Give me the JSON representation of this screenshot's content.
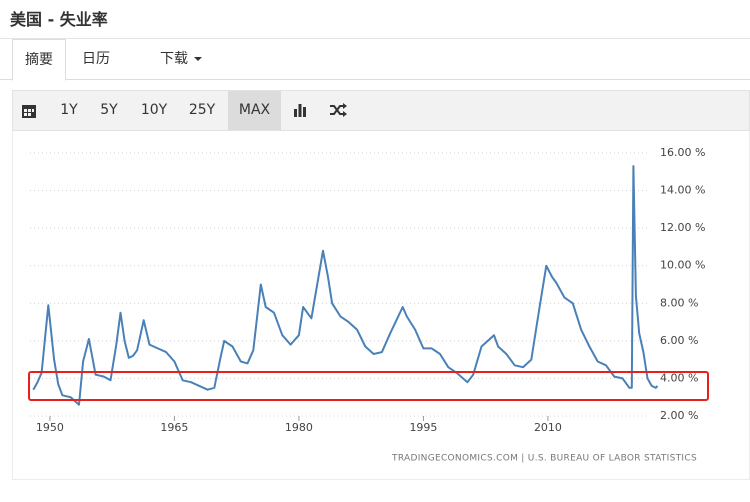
{
  "header": {
    "title": "美国 - 失业率"
  },
  "tabs": [
    "摘要",
    "日历",
    "下载"
  ],
  "toolbar": [
    "1Y",
    "5Y",
    "10Y",
    "25Y",
    "MAX"
  ],
  "chart_data": {
    "type": "line",
    "source": "TRADINGECONOMICS.COM  |  U.S. BUREAU OF LABOR STATISTICS",
    "color": "#4a80b8",
    "grid": true,
    "x": [
      1948.0,
      1948.5,
      1949.0,
      1949.8,
      1950.5,
      1951.0,
      1951.5,
      1952.5,
      1953.5,
      1954.0,
      1954.7,
      1955.5,
      1956.5,
      1957.3,
      1958.0,
      1958.5,
      1959.0,
      1959.5,
      1960.0,
      1960.5,
      1961.3,
      1962.0,
      1963.0,
      1964.0,
      1965.0,
      1966.0,
      1967.0,
      1968.0,
      1969.0,
      1969.8,
      1970.5,
      1971.0,
      1972.0,
      1973.0,
      1973.8,
      1974.5,
      1975.4,
      1976.0,
      1977.0,
      1978.0,
      1979.0,
      1980.0,
      1980.5,
      1981.5,
      1982.9,
      1983.5,
      1984.0,
      1985.0,
      1986.0,
      1987.0,
      1988.0,
      1989.0,
      1990.0,
      1991.0,
      1992.5,
      1993.0,
      1994.0,
      1995.0,
      1996.0,
      1997.0,
      1998.0,
      1999.0,
      2000.3,
      2001.0,
      2002.0,
      2003.5,
      2004.0,
      2005.0,
      2006.0,
      2007.0,
      2008.0,
      2009.0,
      2009.8,
      2010.5,
      2011.0,
      2012.0,
      2013.0,
      2014.0,
      2015.0,
      2016.0,
      2017.0,
      2018.0,
      2019.0,
      2019.8,
      2020.1,
      2020.3,
      2020.6,
      2021.0,
      2021.5,
      2022.0,
      2022.5,
      2023.0,
      2023.2
    ],
    "values": [
      3.4,
      3.8,
      4.3,
      7.9,
      5.0,
      3.7,
      3.1,
      3.0,
      2.6,
      4.9,
      6.1,
      4.2,
      4.1,
      3.9,
      5.8,
      7.5,
      6.0,
      5.1,
      5.2,
      5.5,
      7.1,
      5.8,
      5.6,
      5.4,
      4.9,
      3.9,
      3.8,
      3.6,
      3.4,
      3.5,
      5.0,
      6.0,
      5.7,
      4.9,
      4.8,
      5.5,
      9.0,
      7.8,
      7.5,
      6.3,
      5.8,
      6.3,
      7.8,
      7.2,
      10.8,
      9.4,
      8.0,
      7.3,
      7.0,
      6.6,
      5.7,
      5.3,
      5.4,
      6.4,
      7.8,
      7.3,
      6.6,
      5.6,
      5.6,
      5.3,
      4.6,
      4.3,
      3.8,
      4.2,
      5.7,
      6.3,
      5.7,
      5.3,
      4.7,
      4.6,
      5.0,
      7.8,
      10.0,
      9.4,
      9.1,
      8.3,
      8.0,
      6.6,
      5.7,
      4.9,
      4.7,
      4.1,
      4.0,
      3.5,
      3.5,
      15.3,
      8.4,
      6.4,
      5.4,
      4.0,
      3.6,
      3.5,
      3.6
    ],
    "xlim": [
      1947.6,
      2023.5
    ],
    "xticks": [
      1950,
      1965,
      1980,
      1995,
      2010
    ],
    "ylim": [
      2,
      16
    ],
    "yticks": [
      {
        "value": 2,
        "label": "2.00 %"
      },
      {
        "value": 4,
        "label": "4.00 %"
      },
      {
        "value": 6,
        "label": "6.00 %"
      },
      {
        "value": 8,
        "label": "8.00 %"
      },
      {
        "value": 10,
        "label": "10.00 %"
      },
      {
        "value": 12,
        "label": "12.00 %"
      },
      {
        "value": 14,
        "label": "14.00 %"
      },
      {
        "value": 16,
        "label": "16.00 %"
      }
    ]
  }
}
